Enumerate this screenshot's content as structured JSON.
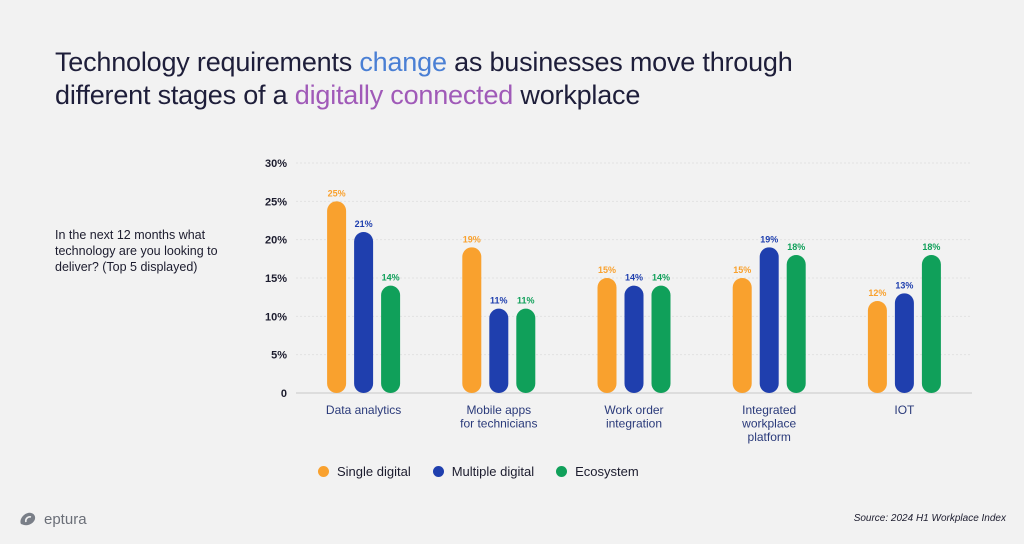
{
  "title": {
    "part1": "Technology requirements ",
    "highlight1": "change",
    "part2": " as businesses move through",
    "part3": "different stages of a ",
    "highlight2": "digitally connected",
    "part4": " workplace"
  },
  "question": "In the next 12 months what technology are you looking to deliver? (Top 5 displayed)",
  "brand": {
    "name": "eptura",
    "icon": "eptura-logo-icon"
  },
  "source": "Source: 2024 H1 Workplace Index",
  "colors": {
    "single": "#f9a12e",
    "multiple": "#1f3fae",
    "ecosystem": "#10a05a",
    "highlight_blue": "#4a7fd4",
    "highlight_purple": "#a05ab8"
  },
  "chart_data": {
    "type": "bar",
    "categories": [
      [
        "Data analytics"
      ],
      [
        "Mobile apps",
        "for technicians"
      ],
      [
        "Work order",
        "integration"
      ],
      [
        "Integrated",
        "workplace",
        "platform"
      ],
      [
        "IOT"
      ]
    ],
    "series": [
      {
        "name": "Single digital",
        "color": "#f9a12e",
        "values": [
          25,
          19,
          15,
          15,
          12
        ]
      },
      {
        "name": "Multiple digital",
        "color": "#1f3fae",
        "values": [
          21,
          11,
          14,
          19,
          13
        ]
      },
      {
        "name": "Ecosystem",
        "color": "#10a05a",
        "values": [
          14,
          11,
          14,
          18,
          18
        ]
      }
    ],
    "value_suffix": "%",
    "ylim": [
      0,
      30
    ],
    "yticks": [
      "0",
      "5%",
      "10%",
      "15%",
      "20%",
      "25%",
      "30%"
    ],
    "ytick_values": [
      0,
      5,
      10,
      15,
      20,
      25,
      30
    ],
    "grid": true,
    "legend_position": "bottom"
  }
}
